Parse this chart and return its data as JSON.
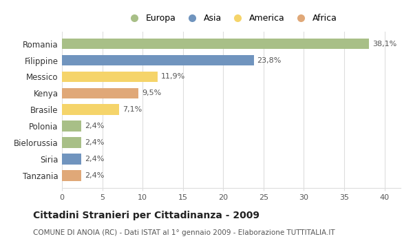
{
  "categories": [
    "Romania",
    "Filippine",
    "Messico",
    "Kenya",
    "Brasile",
    "Polonia",
    "Bielorussia",
    "Siria",
    "Tanzania"
  ],
  "values": [
    38.1,
    23.8,
    11.9,
    9.5,
    7.1,
    2.4,
    2.4,
    2.4,
    2.4
  ],
  "labels": [
    "38,1%",
    "23,8%",
    "11,9%",
    "9,5%",
    "7,1%",
    "2,4%",
    "2,4%",
    "2,4%",
    "2,4%"
  ],
  "colors": [
    "#a8bf87",
    "#7094be",
    "#f5d46a",
    "#e0a878",
    "#f5d46a",
    "#a8bf87",
    "#a8bf87",
    "#7094be",
    "#e0a878"
  ],
  "legend": [
    {
      "label": "Europa",
      "color": "#a8bf87"
    },
    {
      "label": "Asia",
      "color": "#7094be"
    },
    {
      "label": "America",
      "color": "#f5d46a"
    },
    {
      "label": "Africa",
      "color": "#e0a878"
    }
  ],
  "title": "Cittadini Stranieri per Cittadinanza - 2009",
  "subtitle": "COMUNE DI ANOIA (RC) - Dati ISTAT al 1° gennaio 2009 - Elaborazione TUTTITALIA.IT",
  "xlim": [
    0,
    42
  ],
  "xticks": [
    0,
    5,
    10,
    15,
    20,
    25,
    30,
    35,
    40
  ],
  "background_color": "#ffffff",
  "grid_color": "#dddddd",
  "bar_height": 0.65
}
